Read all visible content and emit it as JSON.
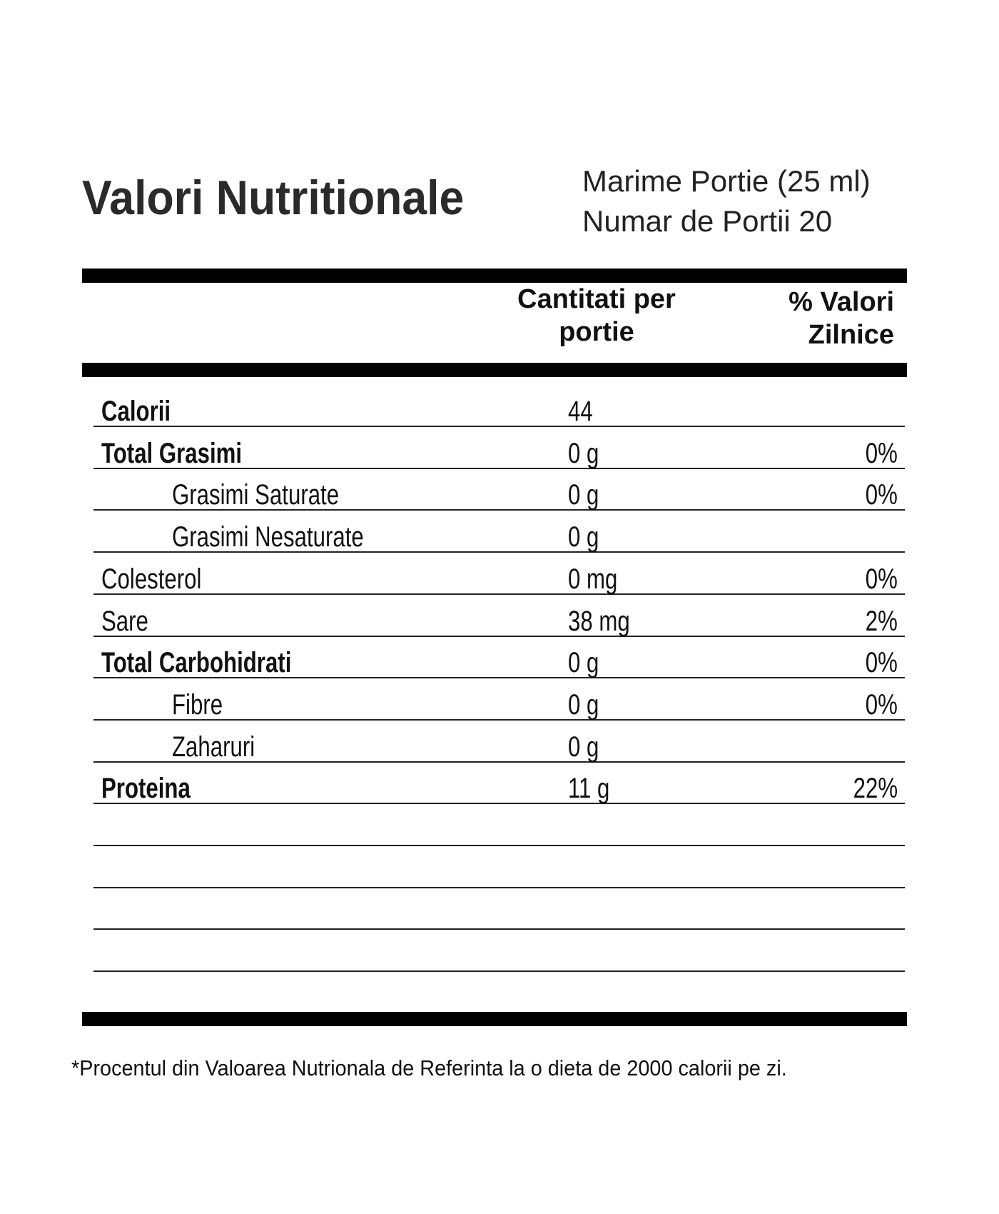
{
  "title": "Valori Nutritionale",
  "serving_size": "Marime Portie (25 ml)",
  "servings": "Numar de Portii 20",
  "columns": {
    "amount_line1": "Cantitati per",
    "amount_line2": "portie",
    "daily_line1": "% Valori",
    "daily_line2": "Zilnice"
  },
  "rows": [
    {
      "label": "Calorii",
      "amount": "44",
      "daily": "",
      "bold": true,
      "indent": false
    },
    {
      "label": "Total Grasimi",
      "amount": "0 g",
      "daily": "0%",
      "bold": true,
      "indent": false
    },
    {
      "label": "Grasimi Saturate",
      "amount": "0 g",
      "daily": "0%",
      "bold": false,
      "indent": true
    },
    {
      "label": "Grasimi Nesaturate",
      "amount": "0 g",
      "daily": "",
      "bold": false,
      "indent": true
    },
    {
      "label": "Colesterol",
      "amount": "0 mg",
      "daily": "0%",
      "bold": false,
      "indent": false
    },
    {
      "label": "Sare",
      "amount": "38 mg",
      "daily": "2%",
      "bold": false,
      "indent": false
    },
    {
      "label": "Total Carbohidrati",
      "amount": "0 g",
      "daily": "0%",
      "bold": true,
      "indent": false
    },
    {
      "label": "Fibre",
      "amount": "0 g",
      "daily": "0%",
      "bold": false,
      "indent": true
    },
    {
      "label": "Zaharuri",
      "amount": "0 g",
      "daily": "",
      "bold": false,
      "indent": true
    },
    {
      "label": "Proteina",
      "amount": "11 g",
      "daily": "22%",
      "bold": true,
      "indent": false
    },
    {
      "label": "",
      "amount": "",
      "daily": "",
      "bold": false,
      "indent": false
    },
    {
      "label": "",
      "amount": "",
      "daily": "",
      "bold": false,
      "indent": false
    },
    {
      "label": "",
      "amount": "",
      "daily": "",
      "bold": false,
      "indent": false
    },
    {
      "label": "",
      "amount": "",
      "daily": "",
      "bold": false,
      "indent": false
    }
  ],
  "footnote": "*Procentul din Valoarea Nutrionala de Referinta la o dieta de 2000 calorii pe zi."
}
